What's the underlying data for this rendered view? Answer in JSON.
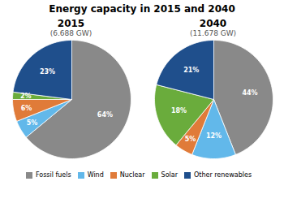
{
  "title": "Energy capacity in 2015 and 2040",
  "legend": "bottom",
  "chart_data": [
    {
      "type": "pie",
      "title": "2015",
      "subtitle": "(6.688 GW)",
      "categories": [
        "Fossil fuels",
        "Wind",
        "Nuclear",
        "Solar",
        "Other renewables"
      ],
      "values": [
        64,
        5,
        6,
        2,
        23
      ],
      "value_labels": [
        "64%",
        "5%",
        "6%",
        "2%",
        "23%"
      ],
      "colors": [
        "#898989",
        "#62B8EA",
        "#E07B39",
        "#6AAC3C",
        "#1F4F8C"
      ],
      "data_labels": true
    },
    {
      "type": "pie",
      "title": "2040",
      "subtitle": "(11.678 GW)",
      "categories": [
        "Fossil fuels",
        "Wind",
        "Nuclear",
        "Solar",
        "Other renewables"
      ],
      "values": [
        44,
        12,
        5,
        18,
        21
      ],
      "value_labels": [
        "44%",
        "12%",
        "5%",
        "18%",
        "21%"
      ],
      "colors": [
        "#898989",
        "#62B8EA",
        "#E07B39",
        "#6AAC3C",
        "#1F4F8C"
      ],
      "data_labels": true
    }
  ]
}
